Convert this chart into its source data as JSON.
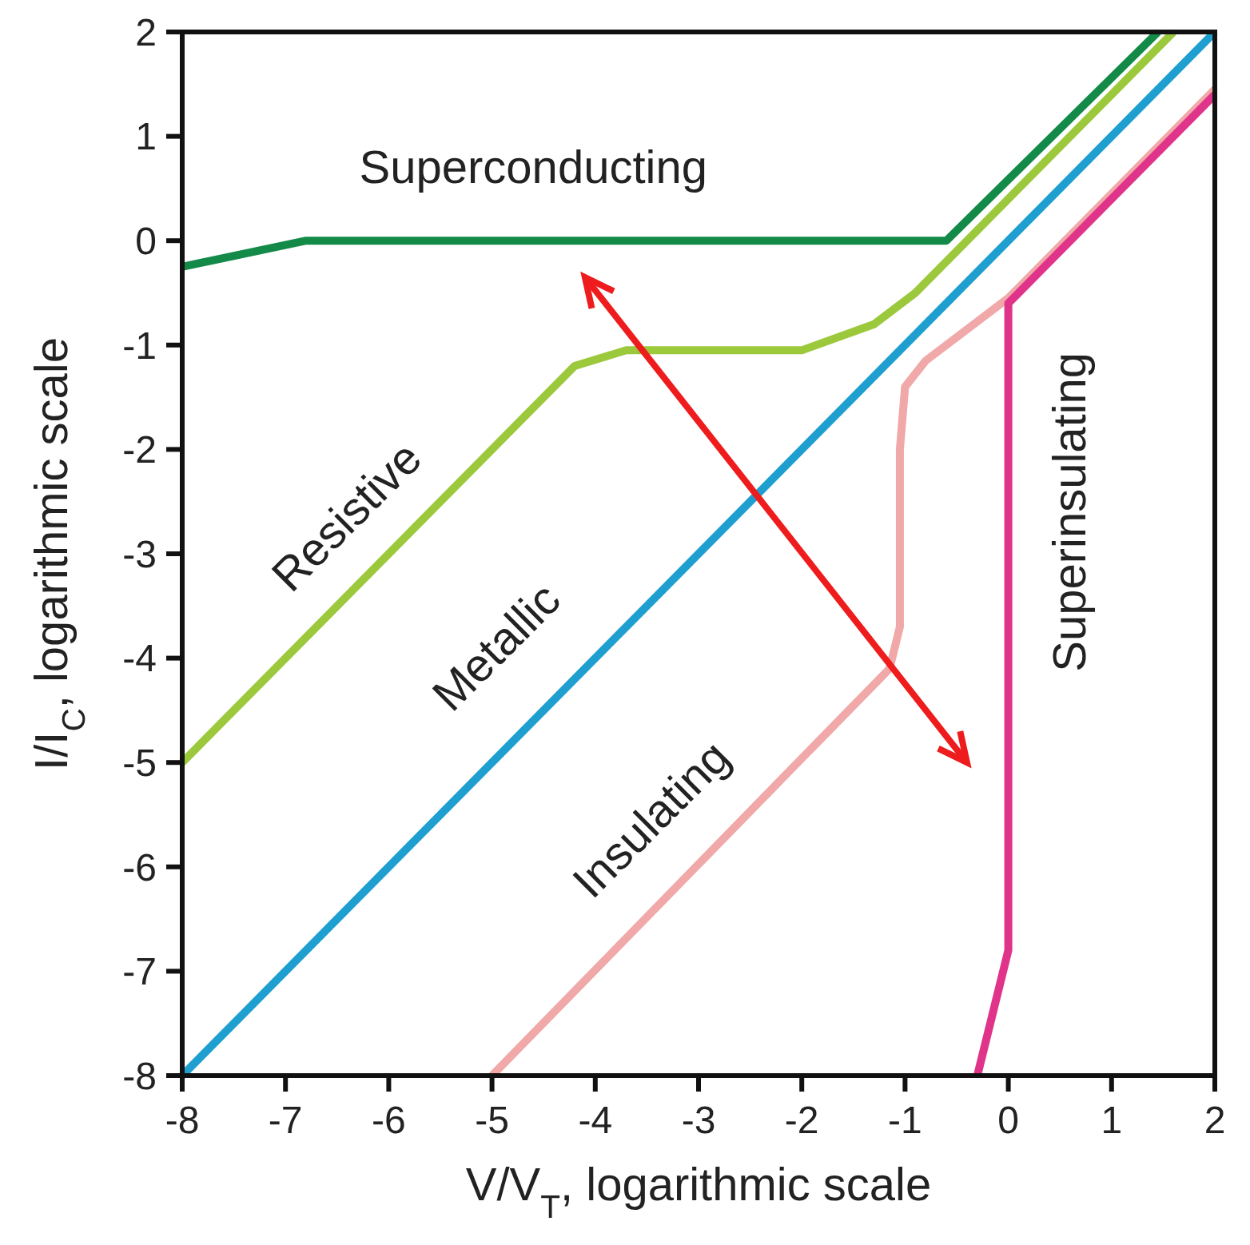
{
  "chart_data": {
    "type": "line",
    "xlabel": "V/V$_{T}$, logarithmic scale",
    "ylabel": "I/I$_{C}$, logarithmic scale",
    "xlim": [
      -8,
      2
    ],
    "ylim": [
      -8,
      2
    ],
    "xticks": [
      -8,
      -7,
      -6,
      -5,
      -4,
      -3,
      -2,
      -1,
      0,
      1,
      2
    ],
    "yticks": [
      -8,
      -7,
      -6,
      -5,
      -4,
      -3,
      -2,
      -1,
      0,
      1,
      2
    ],
    "grid": false,
    "marker": "none",
    "line_style": "solid",
    "series": [
      {
        "name": "Superconducting",
        "color": "#138a48",
        "x": [
          -8,
          -6.8,
          -0.6,
          1.45
        ],
        "values": [
          -0.25,
          0,
          0,
          2
        ]
      },
      {
        "name": "Resistive",
        "color": "#9cc83c",
        "x": [
          -8,
          -4.2,
          -3.7,
          -2,
          -1.3,
          -0.9,
          1.6
        ],
        "values": [
          -5,
          -1.2,
          -1.05,
          -1.05,
          -0.8,
          -0.5,
          2
        ]
      },
      {
        "name": "Metallic",
        "color": "#1e9fd0",
        "x": [
          -8,
          2
        ],
        "values": [
          -8,
          2
        ]
      },
      {
        "name": "Insulating",
        "color": "#f0a8a8",
        "x": [
          -5,
          -1.15,
          -1.05,
          -1.05,
          -1.0,
          -0.8,
          0,
          2
        ],
        "values": [
          -8,
          -4.1,
          -3.7,
          -2,
          -1.4,
          -1.15,
          -0.55,
          1.45
        ]
      },
      {
        "name": "Superinsulating",
        "color": "#e0338a",
        "x": [
          -0.3,
          0,
          0,
          2
        ],
        "values": [
          -8,
          -6.8,
          -0.6,
          1.4
        ]
      }
    ]
  }
}
